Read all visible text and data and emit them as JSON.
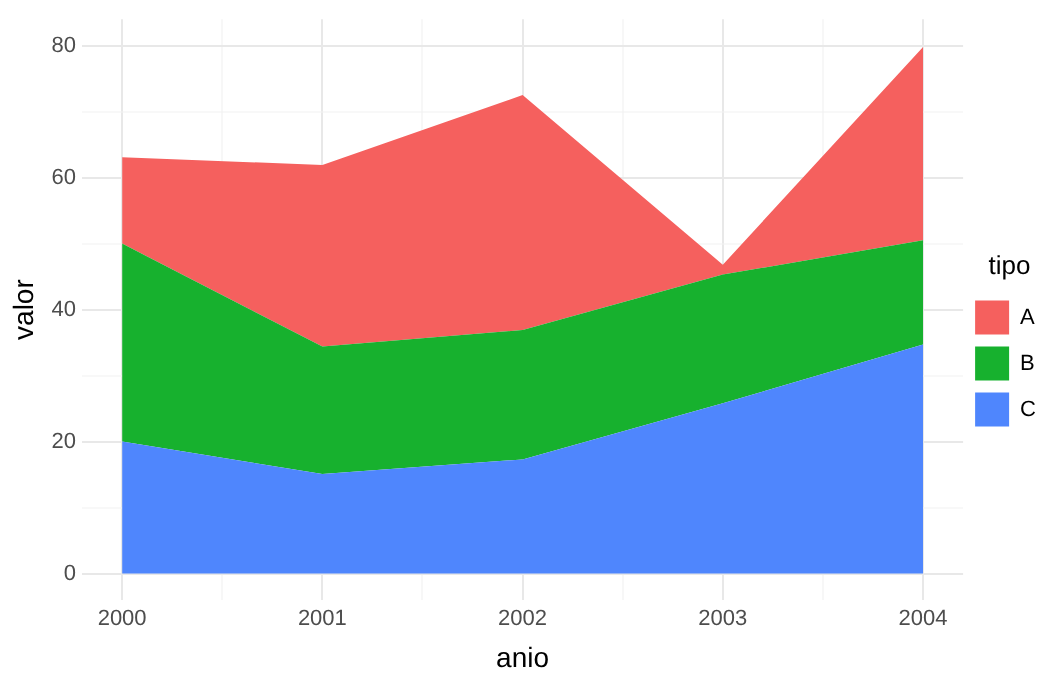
{
  "chart_data": {
    "type": "area",
    "xlabel": "anio",
    "ylabel": "valor",
    "legend_title": "tipo",
    "stacked": true,
    "legend": "right",
    "grid": true,
    "x": [
      2000,
      2001,
      2002,
      2003,
      2004
    ],
    "xlim": [
      1999.8,
      2004.2
    ],
    "xticks": [
      2000,
      {
        "value": 2000.5,
        "label": null
      },
      2001,
      {
        "value": 2001.5,
        "label": null
      },
      2002,
      {
        "value": 2002.5,
        "label": null
      },
      2003,
      {
        "value": 2003.5,
        "label": null
      },
      2004
    ],
    "ylim": [
      -4,
      84
    ],
    "yticks": [
      0,
      {
        "value": 10,
        "label": null
      },
      20,
      {
        "value": 30,
        "label": null
      },
      40,
      {
        "value": 50,
        "label": null
      },
      60,
      {
        "value": 70,
        "label": null
      },
      80
    ],
    "series": [
      {
        "name": "C",
        "color": "#4f86fd",
        "values": [
          20,
          15.1,
          17.3,
          25.8,
          34.7
        ]
      },
      {
        "name": "B",
        "color": "#17b12e",
        "values": [
          30,
          19.3,
          19.6,
          19.5,
          15.8
        ]
      },
      {
        "name": "A",
        "color": "#f5605e",
        "values": [
          13.1,
          27.5,
          35.6,
          1.5,
          29.3
        ]
      }
    ]
  }
}
